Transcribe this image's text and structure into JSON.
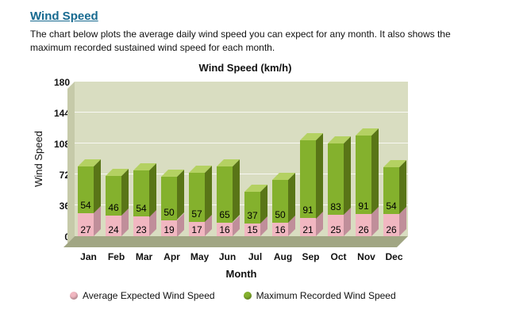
{
  "page": {
    "heading": "Wind Speed",
    "description": "The chart below plots the average daily wind speed you can expect for any month. It also shows the maximum recorded sustained wind speed for each month."
  },
  "chart_data": {
    "type": "bar",
    "stacked": true,
    "title": "Wind Speed (km/h)",
    "xlabel": "Month",
    "ylabel": "Wind Speed",
    "categories": [
      "Jan",
      "Feb",
      "Mar",
      "Apr",
      "May",
      "Jun",
      "Jul",
      "Aug",
      "Sep",
      "Oct",
      "Nov",
      "Dec"
    ],
    "series": [
      {
        "name": "Average Expected Wind Speed",
        "color": "#f1b7c1",
        "color_side": "#c08e9a",
        "values": [
          27,
          24,
          23,
          19,
          17,
          16,
          15,
          16,
          21,
          25,
          26,
          26
        ]
      },
      {
        "name": "Maximum Recorded Wind Speed",
        "color": "#84b12d",
        "color_side": "#597517",
        "color_top": "#b4d162",
        "values": [
          54,
          46,
          54,
          50,
          57,
          65,
          37,
          50,
          91,
          83,
          91,
          54
        ]
      }
    ],
    "yticks": [
      0,
      36,
      72,
      108,
      144,
      180
    ],
    "ylim": [
      0,
      180
    ],
    "grid": true,
    "legend_position": "bottom",
    "wall_color": "#d9ddc1",
    "floor_color": "#a1a683"
  }
}
